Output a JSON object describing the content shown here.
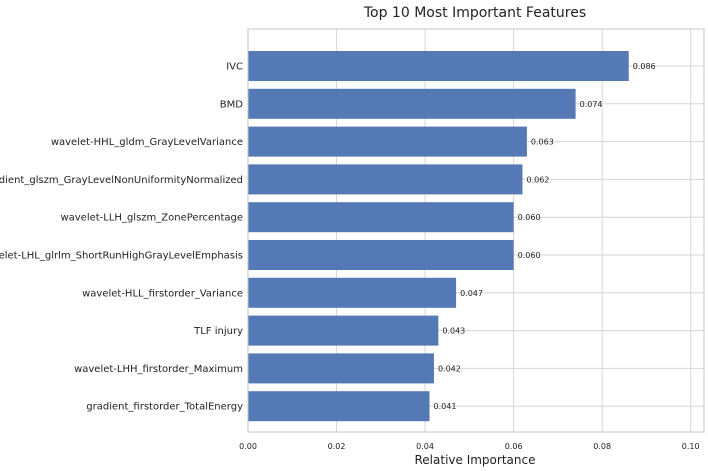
{
  "chart_data": {
    "type": "bar",
    "orientation": "horizontal",
    "title": "Top 10 Most Important Features",
    "xlabel": "Relative Importance",
    "ylabel": "",
    "categories": [
      "IVC",
      "BMD",
      "wavelet-HHL_gldm_GrayLevelVariance",
      "gradient_glszm_GrayLevelNonUniformityNormalized",
      "wavelet-LLH_glszm_ZonePercentage",
      "wavelet-LHL_glrlm_ShortRunHighGrayLevelEmphasis",
      "wavelet-HLL_firstorder_Variance",
      "TLF injury",
      "wavelet-LHH_firstorder_Maximum",
      "gradient_firstorder_TotalEnergy"
    ],
    "values": [
      0.086,
      0.074,
      0.063,
      0.062,
      0.06,
      0.06,
      0.047,
      0.043,
      0.042,
      0.041
    ],
    "value_labels": [
      "0.086",
      "0.074",
      "0.063",
      "0.062",
      "0.060",
      "0.060",
      "0.047",
      "0.043",
      "0.042",
      "0.041"
    ],
    "xlim": [
      0,
      0.103
    ],
    "xticks": [
      0.0,
      0.02,
      0.04,
      0.06,
      0.08,
      0.1
    ],
    "xtick_labels": [
      "0.00",
      "0.02",
      "0.04",
      "0.06",
      "0.08",
      "0.10"
    ],
    "grid": true,
    "legend": false,
    "bar_color": "#4c72b0"
  }
}
